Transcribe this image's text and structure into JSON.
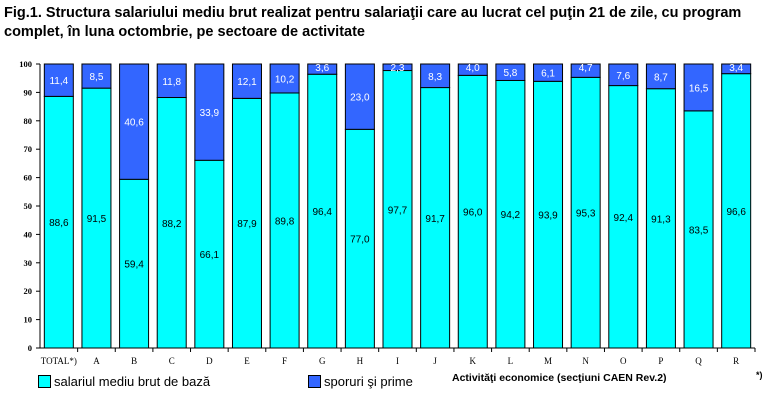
{
  "title": "Fig.1. Structura salariului mediu brut realizat pentru salariaţii care au lucrat cel puţin 21 de zile, cu program complet, în luna octombrie, pe sectoare de activitate",
  "chart_data": {
    "type": "bar",
    "stacked": true,
    "title": "Fig.1. Structura salariului mediu brut realizat pentru salariaţii care au lucrat cel puţin 21 de zile, cu program complet, în luna octombrie, pe sectoare de activitate",
    "xlabel": "Activităţi economice (secţiuni CAEN Rev.2)",
    "footnote_mark": "*)",
    "ylabel": "",
    "ylim": [
      0,
      100
    ],
    "yticks": [
      0,
      10,
      20,
      30,
      40,
      50,
      60,
      70,
      80,
      90,
      100
    ],
    "categories": [
      "TOTAL*)",
      "A",
      "B",
      "C",
      "D",
      "E",
      "F",
      "G",
      "H",
      "I",
      "J",
      "K",
      "L",
      "M",
      "N",
      "O",
      "P",
      "Q",
      "R"
    ],
    "series": [
      {
        "name": "salariul mediu brut de bază",
        "color": "#00ffff",
        "values": [
          88.6,
          91.5,
          59.4,
          88.2,
          66.1,
          87.9,
          89.8,
          96.4,
          77.0,
          97.7,
          91.7,
          96.0,
          94.2,
          93.9,
          95.3,
          92.4,
          91.3,
          83.5,
          96.6
        ],
        "labels": [
          "88,6",
          "91,5",
          "59,4",
          "88,2",
          "66,1",
          "87,9",
          "89,8",
          "96,4",
          "77,0",
          "97,7",
          "91,7",
          "96,0",
          "94,2",
          "93,9",
          "95,3",
          "92,4",
          "91,3",
          "83,5",
          "96,6"
        ]
      },
      {
        "name": "sporuri şi prime",
        "color": "#3366ff",
        "values": [
          11.4,
          8.5,
          40.6,
          11.8,
          33.9,
          12.1,
          10.2,
          3.6,
          23.0,
          2.3,
          8.3,
          4.0,
          5.8,
          6.1,
          4.7,
          7.6,
          8.7,
          16.5,
          3.4
        ],
        "labels": [
          "11,4",
          "8,5",
          "40,6",
          "11,8",
          "33,9",
          "12,1",
          "10,2",
          "3,6",
          "23,0",
          "2,3",
          "8,3",
          "4,0",
          "5,8",
          "6,1",
          "4,7",
          "7,6",
          "8,7",
          "16,5",
          "3,4"
        ]
      }
    ],
    "legend": "bottom-left",
    "grid": false
  }
}
